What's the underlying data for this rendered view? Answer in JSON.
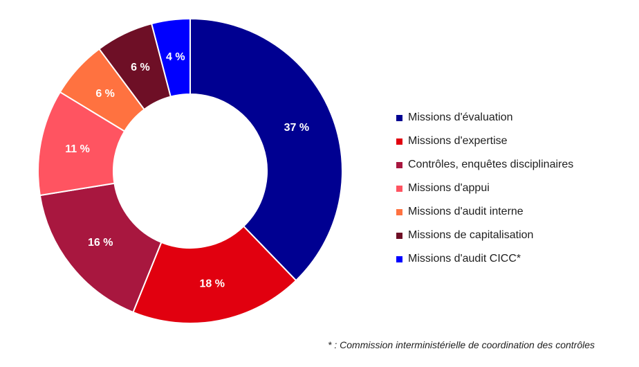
{
  "chart_data": {
    "type": "pie",
    "donut": true,
    "categories": [
      "Missions d'évaluation",
      "Missions d'expertise",
      "Contrôles, enquêtes disciplinaires",
      "Missions d'appui",
      "Missions d'audit interne",
      "Missions de capitalisation",
      "Missions d'audit CICC*"
    ],
    "values": [
      37,
      18,
      16,
      11,
      6,
      6,
      4
    ],
    "data_labels": [
      "37 %",
      "18 %",
      "16 %",
      "11 %",
      "6 %",
      "6 %",
      "4 %"
    ],
    "colors": [
      "#000091",
      "#e1000f",
      "#a8173f",
      "#ff5461",
      "#ff7240",
      "#6e0f26",
      "#0000ff"
    ],
    "legend_position": "right",
    "start": "top, clockwise"
  },
  "footnote": "* : Commission interministérielle de coordination des contrôles"
}
